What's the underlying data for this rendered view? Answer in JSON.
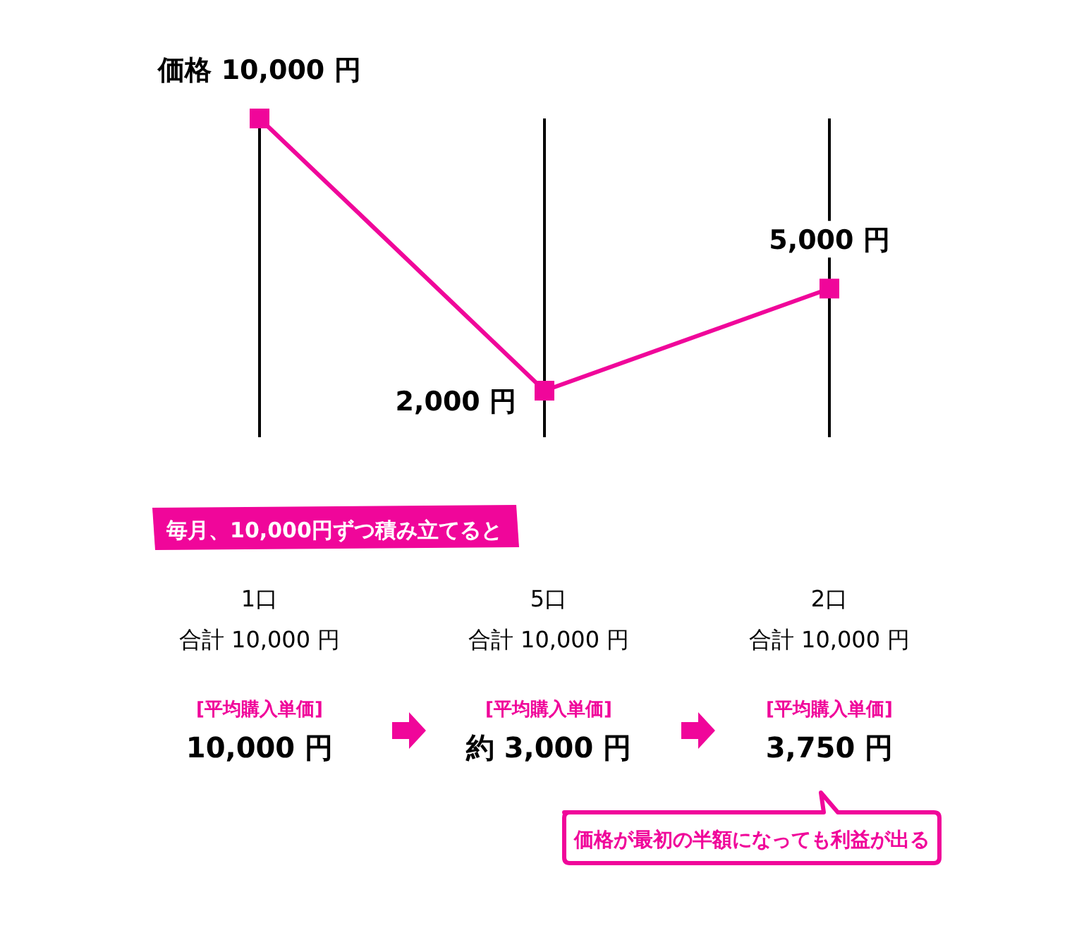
{
  "chart_data": {
    "type": "line",
    "categories": [
      null,
      null,
      null
    ],
    "series": [
      {
        "color": "#f0069a",
        "values": [
          10000,
          2000,
          5000
        ],
        "value_labels": [
          "価格 10,000 円",
          "2,000 円",
          "5,000 円"
        ]
      }
    ],
    "marker": "square",
    "grid": "x",
    "annotations": [
      "毎月、10,000円ずつ積み立てると",
      "1口",
      "合計 10,000 円",
      "[平均購入単価]",
      "10,000 円",
      "5口",
      "合計 10,000 円",
      "[平均購入単価]",
      "約 3,000 円",
      "2口",
      "合計 10,000 円",
      "[平均購入単価]",
      "3,750 円",
      "価格が最初の半額になっても利益が出る"
    ]
  }
}
